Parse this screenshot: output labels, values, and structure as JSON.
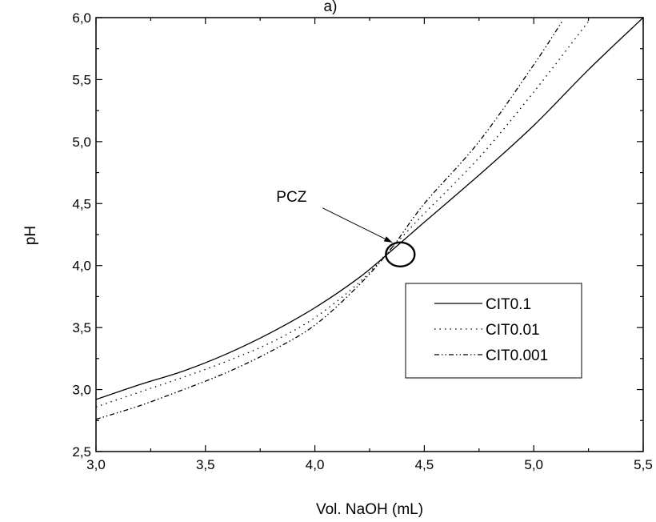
{
  "chart_data": {
    "type": "line",
    "title": "a)",
    "xlabel": "Vol. NaOH (mL)",
    "ylabel": "pH",
    "xlim": [
      3.0,
      5.5
    ],
    "ylim": [
      2.5,
      6.0
    ],
    "x_ticks": [
      3.0,
      3.5,
      4.0,
      4.5,
      5.0,
      5.5
    ],
    "x_tick_labels": [
      "3,0",
      "3,5",
      "4,0",
      "4,5",
      "5,0",
      "5,5"
    ],
    "y_ticks": [
      2.5,
      3.0,
      3.5,
      4.0,
      4.5,
      5.0,
      5.5,
      6.0
    ],
    "y_tick_labels": [
      "2,5",
      "3,0",
      "3,5",
      "4,0",
      "4,5",
      "5,0",
      "5,5",
      "6,0"
    ],
    "grid": false,
    "legend_position": "right",
    "series": [
      {
        "name": "CIT0.1",
        "style": "solid",
        "x": [
          3.0,
          3.2,
          3.4,
          3.6,
          3.8,
          4.0,
          4.2,
          4.35,
          4.5,
          4.75,
          5.0,
          5.25,
          5.5
        ],
        "y": [
          2.92,
          3.04,
          3.15,
          3.29,
          3.46,
          3.66,
          3.9,
          4.12,
          4.35,
          4.73,
          5.13,
          5.58,
          6.0
        ]
      },
      {
        "name": "CIT0.01",
        "style": "dotted",
        "x": [
          3.0,
          3.2,
          3.4,
          3.6,
          3.8,
          4.0,
          4.2,
          4.35,
          4.5,
          4.75,
          5.0,
          5.25
        ],
        "y": [
          2.86,
          2.98,
          3.1,
          3.23,
          3.38,
          3.58,
          3.86,
          4.14,
          4.42,
          4.87,
          5.4,
          5.97
        ]
      },
      {
        "name": "CIT0.001",
        "style": "dash-dot-dot",
        "x": [
          3.0,
          3.2,
          3.4,
          3.6,
          3.8,
          4.0,
          4.2,
          4.35,
          4.5,
          4.75,
          5.0,
          5.13
        ],
        "y": [
          2.76,
          2.87,
          3.0,
          3.14,
          3.31,
          3.52,
          3.84,
          4.14,
          4.5,
          5.0,
          5.62,
          5.97
        ]
      }
    ],
    "annotations": [
      {
        "text": "PCZ",
        "target_x": 4.39,
        "target_y": 4.09
      }
    ]
  }
}
